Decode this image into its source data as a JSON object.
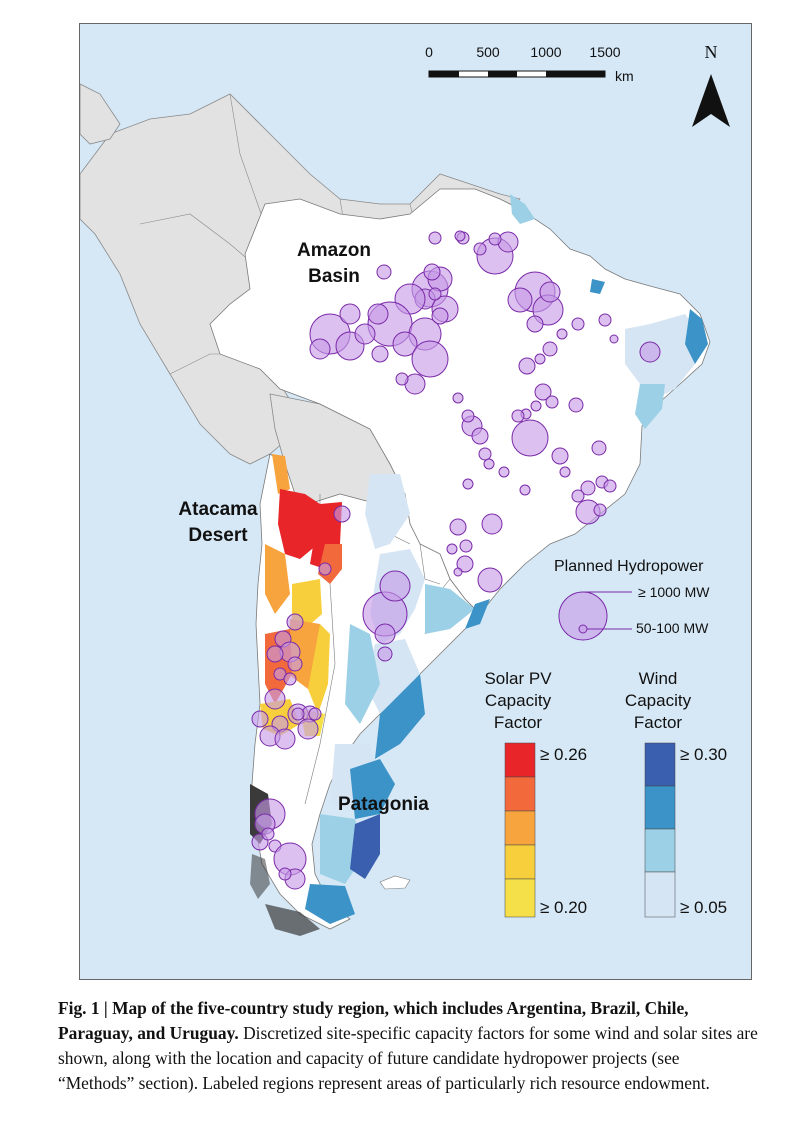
{
  "scale_bar": {
    "ticks": [
      "0",
      "500",
      "1000",
      "1500"
    ],
    "unit": "km"
  },
  "north_arrow": {
    "label": "N"
  },
  "region_labels": {
    "amazon_line1": "Amazon",
    "amazon_line2": "Basin",
    "atacama_line1": "Atacama",
    "atacama_line2": "Desert",
    "patagonia": "Patagonia"
  },
  "hydro_legend": {
    "title": "Planned Hydropower",
    "large_label": "≥ 1000 MW",
    "small_label": "50-100 MW"
  },
  "solar_legend": {
    "title_line1": "Solar PV",
    "title_line2": "Capacity",
    "title_line3": "Factor",
    "max_label": "≥ 0.26",
    "min_label": "≥ 0.20",
    "colors": [
      "#e8262a",
      "#f26a3c",
      "#f7a43e",
      "#f7cf3c",
      "#f5e04a"
    ]
  },
  "wind_legend": {
    "title_line1": "Wind",
    "title_line2": "Capacity",
    "title_line3": "Factor",
    "max_label": "≥ 0.30",
    "min_label": "≥ 0.05",
    "colors": [
      "#3a5fae",
      "#3c93c8",
      "#9cd0e6",
      "#d6e5f3"
    ]
  },
  "caption": {
    "bold": "Fig. 1 | Map of the five-country study region, which includes Argentina, Brazil, Chile, Paraguay, and Uruguay.",
    "text": " Discretized site-specific capacity factors for some wind and solar sites are shown, along with the location and capacity of future candidate hydropower projects (see “Methods” section). Labeled regions represent areas of particularly rich resource endowment."
  }
}
